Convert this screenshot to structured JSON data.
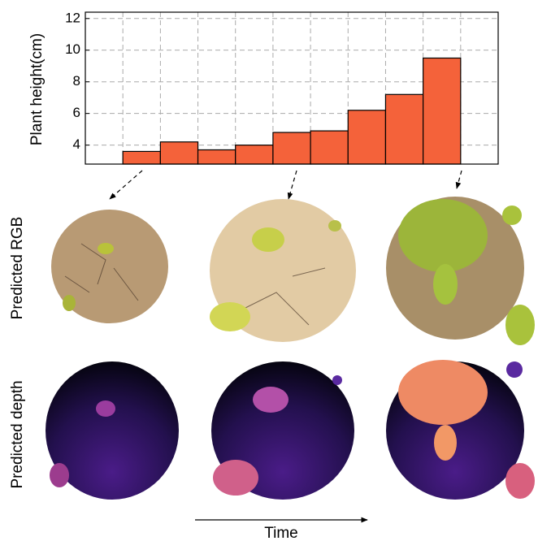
{
  "chart_data": {
    "type": "bar",
    "y_label": "Plant height(cm)",
    "categories": [
      null,
      null,
      null,
      null,
      null,
      null,
      null,
      null,
      null
    ],
    "values": [
      3.6,
      4.2,
      3.7,
      4.0,
      4.8,
      4.9,
      6.2,
      7.2,
      9.5
    ],
    "color": "#f4623a",
    "ylim": [
      2.8,
      12.4
    ],
    "yticks": [
      4,
      6,
      8,
      10,
      12
    ],
    "grid": true
  },
  "row_labels": [
    "Predicted RGB",
    "Predicted depth"
  ],
  "x_caption": "Time"
}
